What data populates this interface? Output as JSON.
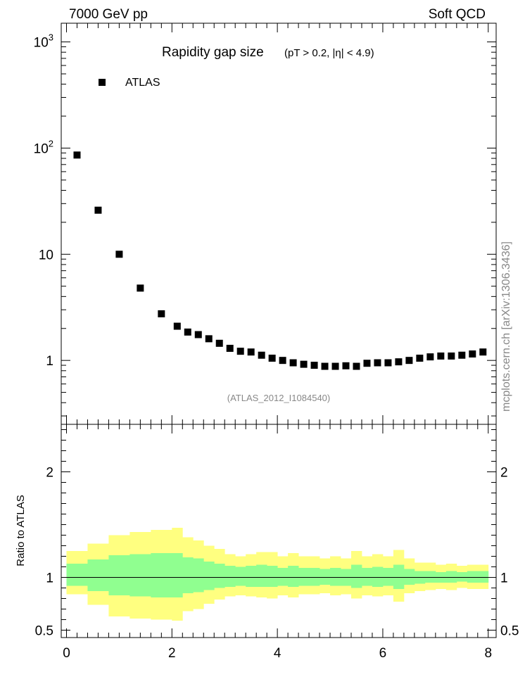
{
  "header": {
    "left_text": "7000 GeV pp",
    "right_text": "Soft QCD",
    "side_text": "mcplots.cern.ch [arXiv:1306.3436]"
  },
  "chart_data": [
    {
      "type": "scatter",
      "title": "Rapidity gap size",
      "subtitle": "(pT > 0.2, |η| < 4.9)",
      "legend": {
        "entries": [
          "ATLAS"
        ],
        "placement": "top-left"
      },
      "annotation": "(ATLAS_2012_I1084540)",
      "yscale": "log",
      "xlim": [
        -0.1,
        8.15
      ],
      "ylim": [
        0.25,
        1500
      ],
      "yticks": [
        {
          "value": 1,
          "label": "1",
          "exp": ""
        },
        {
          "value": 10,
          "label": "10",
          "exp": ""
        },
        {
          "value": 100,
          "label": "10",
          "exp": "2"
        },
        {
          "value": 1000,
          "label": "10",
          "exp": "3"
        }
      ],
      "series": [
        {
          "name": "ATLAS",
          "x": [
            0.2,
            0.6,
            1.0,
            1.4,
            1.8,
            2.1,
            2.3,
            2.5,
            2.7,
            2.9,
            3.1,
            3.3,
            3.5,
            3.7,
            3.9,
            4.1,
            4.3,
            4.5,
            4.7,
            4.9,
            5.1,
            5.3,
            5.5,
            5.7,
            5.9,
            6.1,
            6.3,
            6.5,
            6.7,
            6.9,
            7.1,
            7.3,
            7.5,
            7.7,
            7.9
          ],
          "y": [
            86,
            26,
            10,
            4.8,
            2.75,
            2.1,
            1.85,
            1.75,
            1.6,
            1.45,
            1.3,
            1.22,
            1.2,
            1.12,
            1.05,
            1.0,
            0.95,
            0.92,
            0.9,
            0.88,
            0.88,
            0.89,
            0.88,
            0.94,
            0.95,
            0.95,
            0.97,
            1.0,
            1.05,
            1.08,
            1.1,
            1.1,
            1.12,
            1.15,
            1.2
          ]
        }
      ]
    },
    {
      "type": "area",
      "ylabel": "Ratio to ATLAS",
      "xlim": [
        -0.1,
        8.15
      ],
      "ylim": [
        0.43,
        2.45
      ],
      "xticks": [
        0,
        2,
        4,
        6,
        8
      ],
      "yticks": [
        0.5,
        1,
        2
      ],
      "reference_line": 1,
      "band_colors": {
        "outer": "#ffff80",
        "inner": "#90ff90"
      },
      "bands": {
        "edges": [
          0,
          0.4,
          0.8,
          1.2,
          1.6,
          2.0,
          2.2,
          2.4,
          2.6,
          2.8,
          3.0,
          3.2,
          3.4,
          3.6,
          3.8,
          4.0,
          4.2,
          4.4,
          4.6,
          4.8,
          5.0,
          5.2,
          5.4,
          5.6,
          5.8,
          6.0,
          6.2,
          6.4,
          6.6,
          6.8,
          7.0,
          7.2,
          7.4,
          7.6,
          7.8,
          8.0
        ],
        "outer_up": [
          1.25,
          1.32,
          1.4,
          1.43,
          1.45,
          1.47,
          1.38,
          1.35,
          1.3,
          1.27,
          1.22,
          1.2,
          1.22,
          1.24,
          1.24,
          1.2,
          1.23,
          1.2,
          1.2,
          1.18,
          1.2,
          1.18,
          1.25,
          1.2,
          1.22,
          1.2,
          1.26,
          1.18,
          1.14,
          1.14,
          1.12,
          1.13,
          1.11,
          1.12,
          1.12
        ],
        "outer_down": [
          0.84,
          0.74,
          0.63,
          0.61,
          0.6,
          0.59,
          0.68,
          0.7,
          0.75,
          0.79,
          0.82,
          0.83,
          0.82,
          0.81,
          0.8,
          0.83,
          0.81,
          0.84,
          0.84,
          0.85,
          0.83,
          0.84,
          0.8,
          0.83,
          0.82,
          0.83,
          0.77,
          0.85,
          0.87,
          0.88,
          0.89,
          0.88,
          0.9,
          0.89,
          0.89
        ],
        "inner_up": [
          1.13,
          1.17,
          1.21,
          1.22,
          1.23,
          1.23,
          1.19,
          1.18,
          1.15,
          1.13,
          1.11,
          1.1,
          1.11,
          1.12,
          1.11,
          1.09,
          1.11,
          1.09,
          1.09,
          1.08,
          1.09,
          1.08,
          1.12,
          1.09,
          1.1,
          1.09,
          1.12,
          1.08,
          1.06,
          1.06,
          1.05,
          1.06,
          1.05,
          1.06,
          1.06
        ],
        "inner_down": [
          0.92,
          0.87,
          0.83,
          0.82,
          0.81,
          0.81,
          0.85,
          0.86,
          0.88,
          0.9,
          0.91,
          0.92,
          0.91,
          0.91,
          0.91,
          0.92,
          0.91,
          0.92,
          0.92,
          0.93,
          0.92,
          0.92,
          0.9,
          0.92,
          0.91,
          0.92,
          0.89,
          0.93,
          0.94,
          0.95,
          0.95,
          0.95,
          0.96,
          0.95,
          0.95
        ]
      }
    }
  ]
}
